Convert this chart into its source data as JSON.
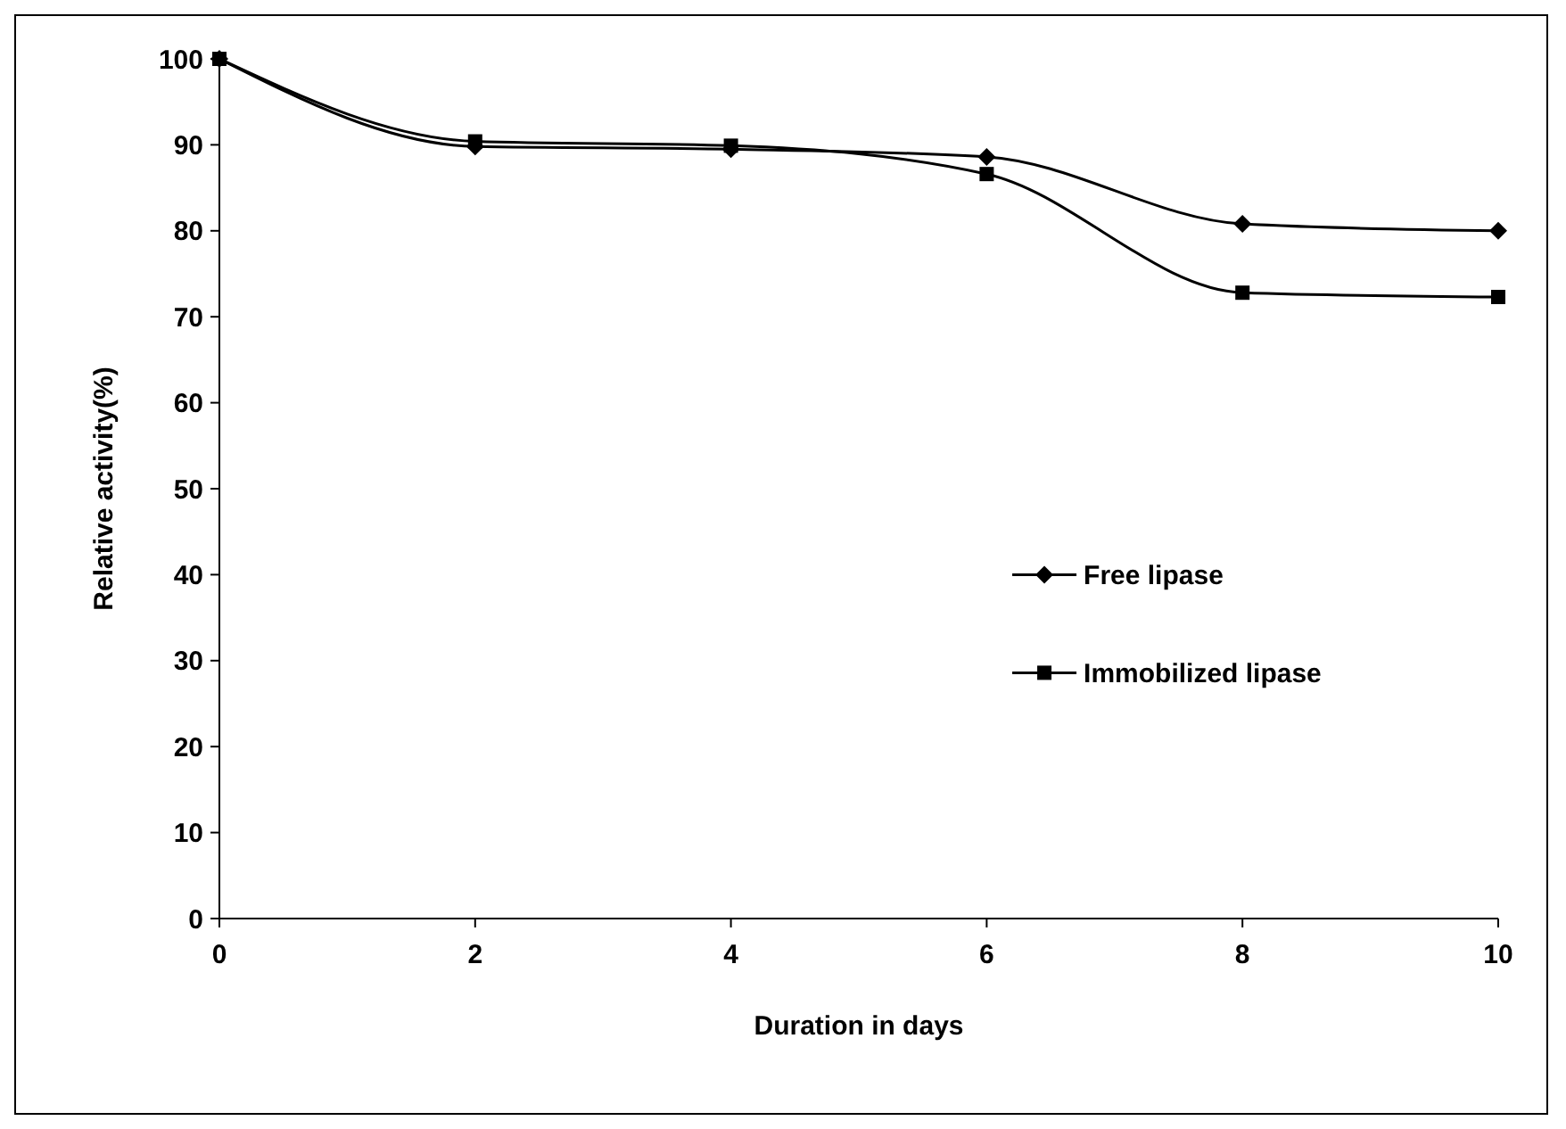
{
  "chart_data": {
    "type": "line",
    "xlabel": "Duration in days",
    "ylabel": "Relative activity(%)",
    "x": [
      0,
      2,
      4,
      6,
      8,
      10
    ],
    "series": [
      {
        "name": "Free lipase",
        "color": "#000000",
        "marker": "diamond",
        "values": [
          100,
          89.8,
          89.5,
          88.6,
          80.8,
          80
        ]
      },
      {
        "name": "Immobilized lipase",
        "color": "#000000",
        "marker": "square",
        "values": [
          100,
          90.4,
          89.9,
          86.6,
          72.8,
          72.3
        ]
      }
    ],
    "xlim": [
      0,
      10
    ],
    "xticks": [
      0,
      2,
      4,
      6,
      8,
      10
    ],
    "ylim": [
      0,
      100
    ],
    "yticks": [
      0,
      10,
      20,
      30,
      40,
      50,
      60,
      70,
      80,
      90,
      100
    ],
    "grid": false,
    "legend": "right",
    "line_style": "solid"
  }
}
